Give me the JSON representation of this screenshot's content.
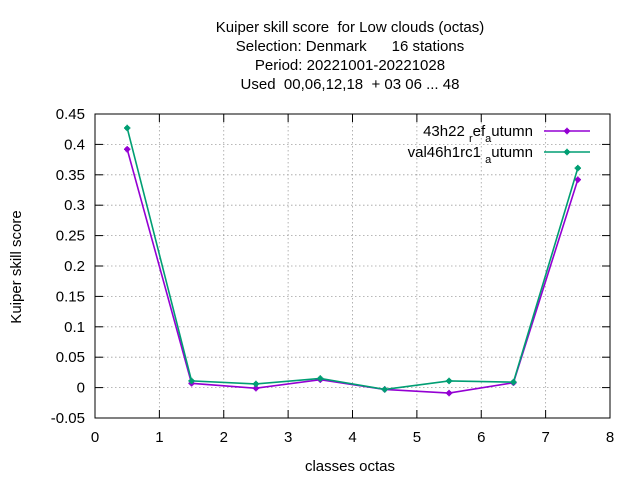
{
  "chart_data": {
    "type": "line",
    "title_lines": [
      "Kuiper skill score  for Low clouds (octas)",
      "Selection: Denmark      16 stations",
      "Period: 20221001-20221028",
      "Used  00,06,12,18  + 03 06 ... 48"
    ],
    "xlabel": "classes octas",
    "ylabel": "Kuiper skill score",
    "xlim": [
      0,
      8
    ],
    "ylim": [
      -0.05,
      0.45
    ],
    "xticks": [
      0,
      1,
      2,
      3,
      4,
      5,
      6,
      7,
      8
    ],
    "xtick_labels": [
      "0",
      "1",
      "2",
      "3",
      "4",
      "5",
      "6",
      "7",
      "8"
    ],
    "yticks": [
      -0.05,
      0,
      0.05,
      0.1,
      0.15,
      0.2,
      0.25,
      0.3,
      0.35,
      0.4,
      0.45
    ],
    "ytick_labels": [
      "-0.05",
      "0",
      "0.05",
      "0.1",
      "0.15",
      "0.2",
      "0.25",
      "0.3",
      "0.35",
      "0.4",
      "0.45"
    ],
    "grid": true,
    "legend_position": "top-right",
    "x": [
      0.5,
      1.5,
      2.5,
      3.5,
      4.5,
      5.5,
      6.5,
      7.5
    ],
    "series": [
      {
        "name_main": "43h22",
        "name_parts": [
          {
            "text": "43h22 ",
            "sub": false
          },
          {
            "text": "r",
            "sub": true
          },
          {
            "text": "ef",
            "sub": false
          },
          {
            "text": "a",
            "sub": true
          },
          {
            "text": "utumn",
            "sub": false
          }
        ],
        "color": "#9400d3",
        "values": [
          0.392,
          0.007,
          -0.001,
          0.013,
          -0.003,
          -0.009,
          0.008,
          0.342
        ]
      },
      {
        "name_main": "val46h1rc1",
        "name_parts": [
          {
            "text": "val46h1rc1 ",
            "sub": false
          },
          {
            "text": "a",
            "sub": true
          },
          {
            "text": "utumn",
            "sub": false
          }
        ],
        "color": "#009e73",
        "values": [
          0.427,
          0.011,
          0.006,
          0.015,
          -0.003,
          0.011,
          0.009,
          0.361
        ]
      }
    ]
  }
}
